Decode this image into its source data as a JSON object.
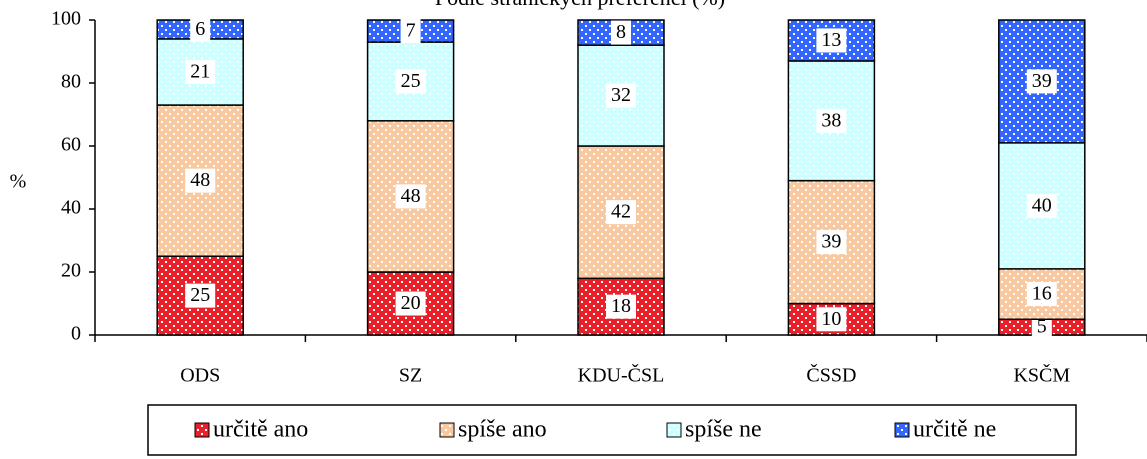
{
  "chart_data": {
    "type": "stacked_bar",
    "title": "Podle stranických preferencí (%)",
    "y_label": "%",
    "categories": [
      "ODS",
      "SZ",
      "KDU-ČSL",
      "ČSSD",
      "KSČM"
    ],
    "series": [
      {
        "name": "určitě ano",
        "color": "#e8202a",
        "values": [
          25,
          20,
          18,
          10,
          5
        ]
      },
      {
        "name": "spíše ano",
        "color": "#f8c9a0",
        "values": [
          48,
          48,
          42,
          39,
          16
        ]
      },
      {
        "name": "spíše ne",
        "color": "#ccffff",
        "values": [
          21,
          25,
          32,
          38,
          40
        ]
      },
      {
        "name": "určitě ne",
        "color": "#3366ff",
        "values": [
          6,
          7,
          8,
          13,
          39
        ]
      }
    ],
    "ylim": [
      0,
      100
    ],
    "yticks": [
      0,
      20,
      40,
      60,
      80,
      100
    ],
    "legend": "bottom"
  }
}
